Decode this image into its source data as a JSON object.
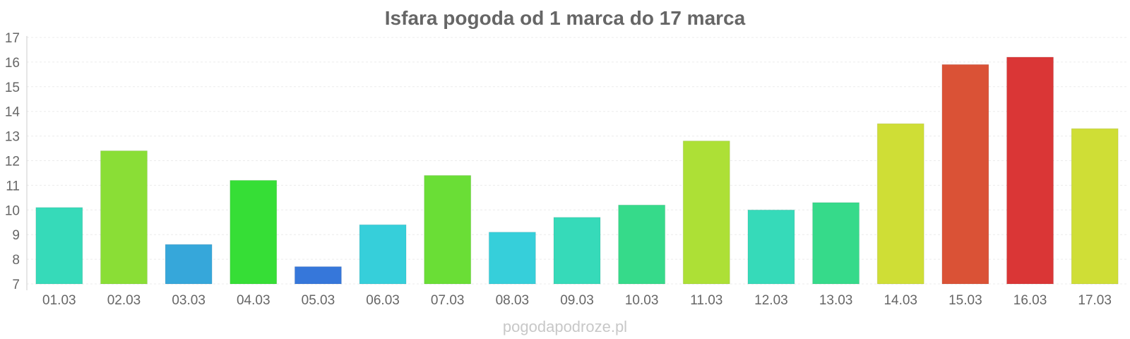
{
  "chart_data": {
    "type": "bar",
    "title": "Isfara pogoda od 1 marca do 17 marca",
    "xlabel": "",
    "ylabel": "",
    "ylim": [
      7,
      17
    ],
    "yticks": [
      7,
      8,
      9,
      10,
      11,
      12,
      13,
      14,
      15,
      16,
      17
    ],
    "grid": true,
    "categories": [
      "01.03",
      "02.03",
      "03.03",
      "04.03",
      "05.03",
      "06.03",
      "07.03",
      "08.03",
      "09.03",
      "10.03",
      "11.03",
      "12.03",
      "13.03",
      "14.03",
      "15.03",
      "16.03",
      "17.03"
    ],
    "values": [
      10.1,
      12.4,
      8.6,
      11.2,
      7.7,
      9.4,
      11.4,
      9.1,
      9.7,
      10.2,
      12.8,
      10.0,
      10.3,
      13.5,
      15.9,
      16.2,
      13.3
    ],
    "colors": [
      "#36dab9",
      "#8ade36",
      "#36a7da",
      "#36de36",
      "#3677da",
      "#36cfda",
      "#6ade36",
      "#36cfda",
      "#36dab9",
      "#36da8a",
      "#ade036",
      "#36dab9",
      "#36da8a",
      "#cfde36",
      "#da5236",
      "#da3636",
      "#cfde36"
    ]
  },
  "watermark": "pogodapodroze.pl"
}
